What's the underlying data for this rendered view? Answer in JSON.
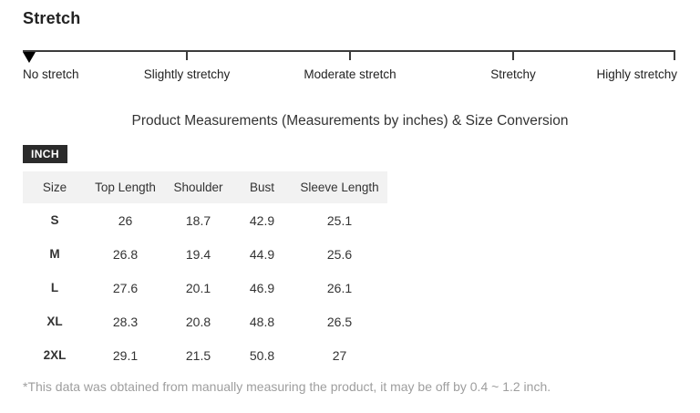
{
  "stretch": {
    "heading": "Stretch",
    "labels": [
      "No stretch",
      "Slightly stretchy",
      "Moderate stretch",
      "Stretchy",
      "Highly stretchy"
    ],
    "selected_level": "No stretch",
    "marker_icon": "triangle-down-icon"
  },
  "measurements": {
    "title": "Product Measurements (Measurements by inches) & Size Conversion",
    "unit_badge": "INCH",
    "table": {
      "headers": [
        "Size",
        "Top Length",
        "Shoulder",
        "Bust",
        "Sleeve Length"
      ],
      "rows": [
        {
          "size": "S",
          "values": [
            "26",
            "18.7",
            "42.9",
            "25.1"
          ]
        },
        {
          "size": "M",
          "values": [
            "26.8",
            "19.4",
            "44.9",
            "25.6"
          ]
        },
        {
          "size": "L",
          "values": [
            "27.6",
            "20.1",
            "46.9",
            "26.1"
          ]
        },
        {
          "size": "XL",
          "values": [
            "28.3",
            "20.8",
            "48.8",
            "26.5"
          ]
        },
        {
          "size": "2XL",
          "values": [
            "29.1",
            "21.5",
            "50.8",
            "27"
          ]
        }
      ]
    },
    "footnote": "*This data was obtained from manually measuring the product, it may be off by 0.4 ~ 1.2 inch."
  },
  "colors": {
    "text_dark": "#222222",
    "table_text": "#333333",
    "badge_bg": "#2b2b2b",
    "badge_text": "#ffffff",
    "header_row_bg": "#f2f2f2",
    "ruler_line": "#3c3c3c",
    "footnote_gray": "#9e9e9e",
    "background": "#ffffff"
  }
}
